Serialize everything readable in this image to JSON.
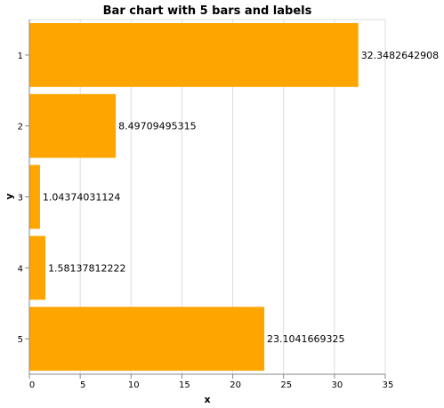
{
  "chart_data": {
    "type": "bar",
    "orientation": "horizontal",
    "title": "Bar chart with 5 bars and labels",
    "xlabel": "x",
    "ylabel": "y",
    "categories": [
      "1",
      "2",
      "3",
      "4",
      "5"
    ],
    "values": [
      32.3482642908,
      8.49709495315,
      1.04374031124,
      1.58137812222,
      23.1041669325
    ],
    "labels": [
      "32.3482642908",
      "8.49709495315",
      "1.04374031124",
      "1.58137812222",
      "23.1041669325"
    ],
    "xlim": [
      0,
      35
    ],
    "xticks": [
      0,
      5,
      10,
      15,
      20,
      25,
      30,
      35
    ],
    "grid": true,
    "colors": {
      "bar": "#FFA500",
      "grid": "#dddddd",
      "axis": "#888888"
    }
  }
}
